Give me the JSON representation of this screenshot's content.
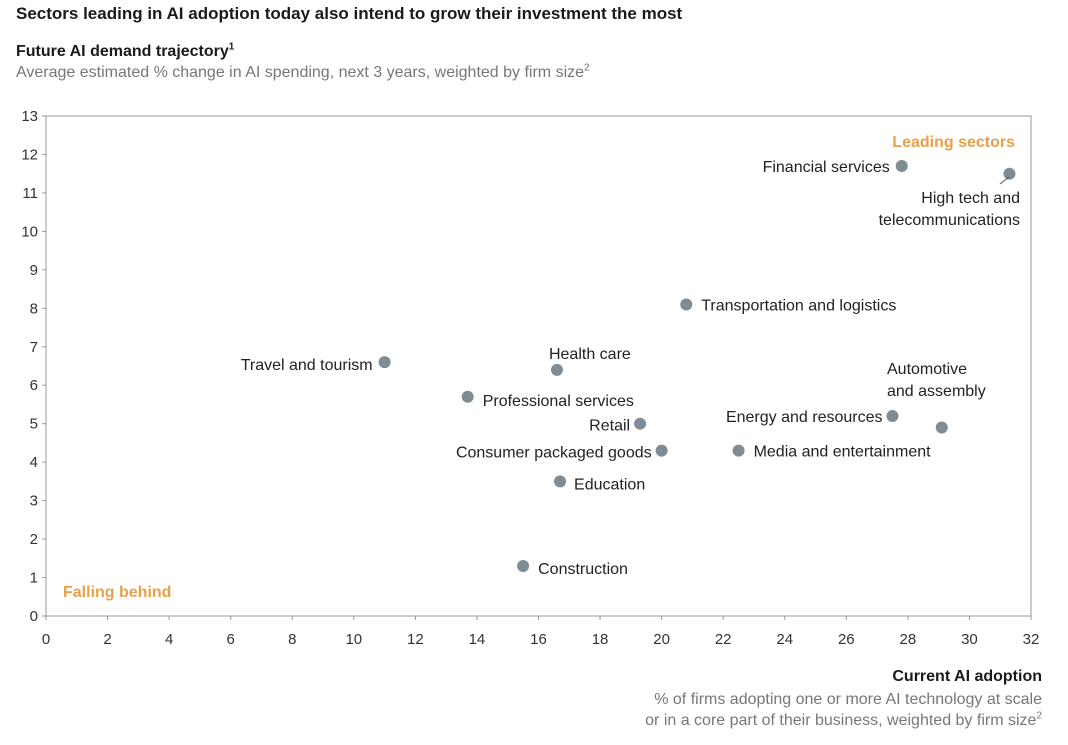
{
  "header": {
    "headline": "Sectors leading in AI adoption today also intend to grow their investment the most"
  },
  "chart_data": {
    "type": "scatter",
    "title": "Future AI demand trajectory",
    "title_sup": "1",
    "subtitle": "Average estimated % change in AI spending, next 3 years, weighted by firm size",
    "subtitle_sup": "2",
    "xlabel": "Current AI adoption",
    "xlabel_sub_line1": "% of firms adopting one or more AI technology at scale",
    "xlabel_sub_line2": "or in a core part of their business, weighted by firm size",
    "xlabel_sub_sup": "2",
    "xlim": [
      0,
      32
    ],
    "ylim": [
      0,
      13
    ],
    "xticks": [
      "0",
      "2",
      "4",
      "6",
      "8",
      "10",
      "12",
      "14",
      "16",
      "18",
      "20",
      "22",
      "24",
      "26",
      "28",
      "30",
      "32"
    ],
    "yticks": [
      "0",
      "1",
      "2",
      "3",
      "4",
      "5",
      "6",
      "7",
      "8",
      "9",
      "10",
      "11",
      "12",
      "13"
    ],
    "grid": false,
    "marker_color": "#7f8c94",
    "corner_label_color": "#e8a04a",
    "corner_labels": {
      "top_right": "Leading sectors",
      "bottom_left": "Falling behind"
    },
    "points": [
      {
        "name": "Financial services",
        "x": 27.8,
        "y": 11.7
      },
      {
        "name": "High tech and telecommunications",
        "x": 31.3,
        "y": 11.5
      },
      {
        "name": "Transportation and logistics",
        "x": 20.8,
        "y": 8.1
      },
      {
        "name": "Travel and tourism",
        "x": 11.0,
        "y": 6.6
      },
      {
        "name": "Health care",
        "x": 16.6,
        "y": 6.4
      },
      {
        "name": "Professional services",
        "x": 13.7,
        "y": 5.7
      },
      {
        "name": "Retail",
        "x": 19.3,
        "y": 5.0
      },
      {
        "name": "Energy and resources",
        "x": 27.5,
        "y": 5.2
      },
      {
        "name": "Automotive and assembly",
        "x": 29.1,
        "y": 4.9
      },
      {
        "name": "Consumer packaged goods",
        "x": 20.0,
        "y": 4.3
      },
      {
        "name": "Media and entertainment",
        "x": 22.5,
        "y": 4.3
      },
      {
        "name": "Education",
        "x": 16.7,
        "y": 3.5
      },
      {
        "name": "Construction",
        "x": 15.5,
        "y": 1.3
      }
    ]
  }
}
